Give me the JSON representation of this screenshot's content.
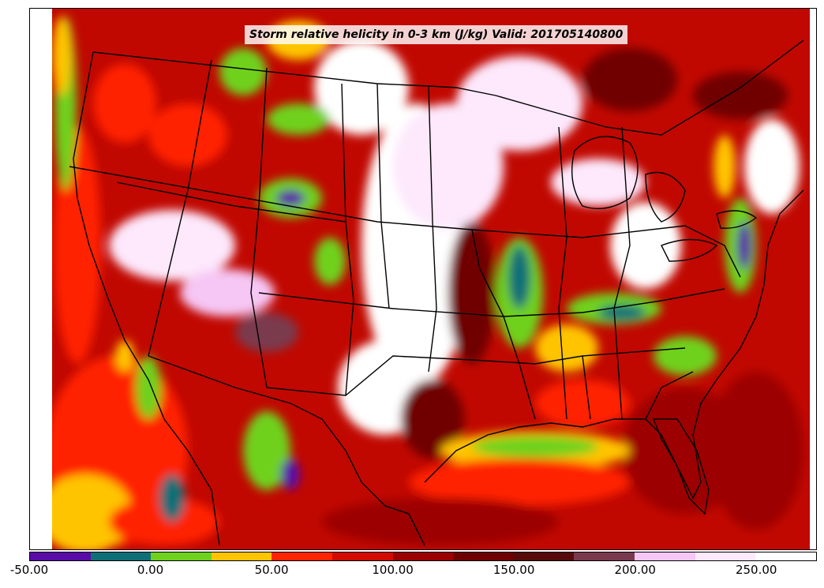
{
  "map": {
    "title": "Storm relative helicity in 0-3 km (J/kg) Valid: 201705140800",
    "field": "storm-relative-helicity-0-3km",
    "region": "CONUS",
    "background": "#ffffff",
    "borders_color": "#000000"
  },
  "colorbar": {
    "min": -50,
    "max": 275,
    "step": 25,
    "colors": [
      "#5a0ca8",
      "#0e6f77",
      "#6fd11e",
      "#ffc400",
      "#ff2400",
      "#d20a00",
      "#9c0000",
      "#6f0000",
      "#570a0a",
      "#7a3a4d",
      "#f6c6f4",
      "#fde8fc",
      "#ffffff"
    ],
    "labels": [
      "-50.00",
      "0.00",
      "50.00",
      "100.00",
      "150.00",
      "200.00",
      "250.00"
    ],
    "label_values": [
      -50,
      0,
      50,
      100,
      150,
      200,
      250
    ]
  }
}
